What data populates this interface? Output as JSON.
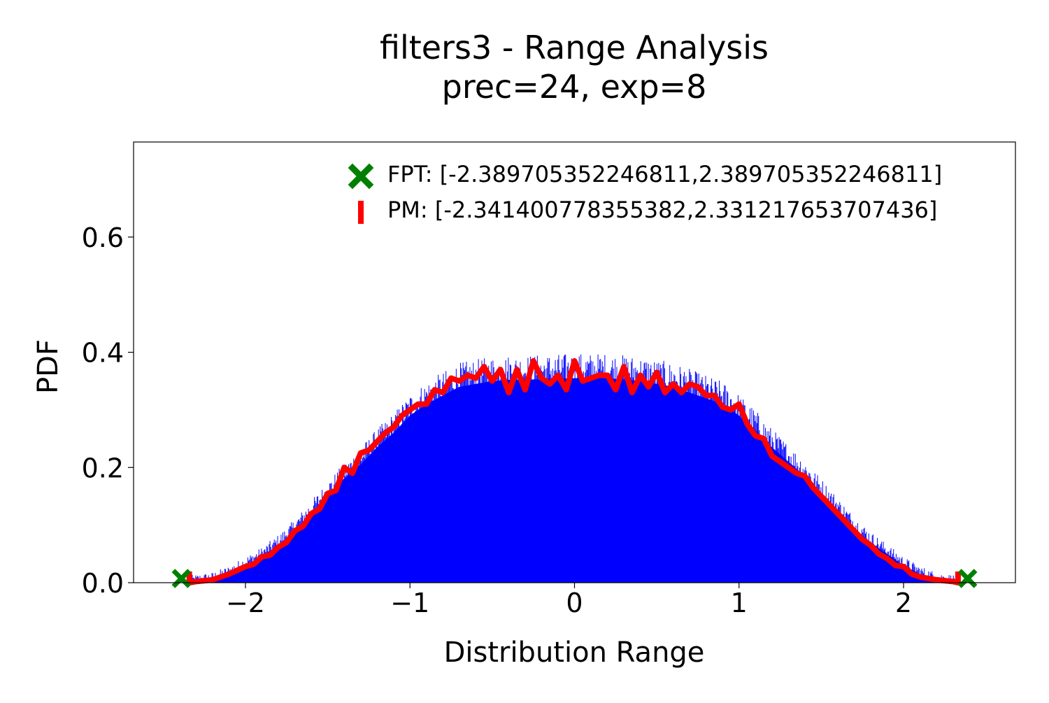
{
  "chart_data": {
    "type": "histogram",
    "title": "filters3 - Range Analysis",
    "subtitle": "prec=24, exp=8",
    "xlabel": "Distribution Range",
    "ylabel": "PDF",
    "xlim": [
      -2.68,
      2.68
    ],
    "ylim": [
      0.0,
      0.765
    ],
    "xticks": [
      {
        "value": -2,
        "label": "−2"
      },
      {
        "value": -1,
        "label": "−1"
      },
      {
        "value": 0,
        "label": "0"
      },
      {
        "value": 1,
        "label": "1"
      },
      {
        "value": 2,
        "label": "2"
      }
    ],
    "yticks": [
      {
        "value": 0.0,
        "label": "0.0"
      },
      {
        "value": 0.2,
        "label": "0.2"
      },
      {
        "value": 0.4,
        "label": "0.4"
      },
      {
        "value": 0.6,
        "label": "0.6"
      }
    ],
    "grid": false,
    "legend_position": "top-right",
    "colors": {
      "histogram": "#0000ff",
      "density": "#ff0000",
      "fpt_marker": "#008000",
      "pm_marker": "#ff0000"
    },
    "histogram": {
      "x_range": [
        -2.3414,
        2.3312
      ],
      "bins": 2000,
      "envelope": [
        [
          -2.34,
          0.0
        ],
        [
          -2.2,
          0.005
        ],
        [
          -2.1,
          0.015
        ],
        [
          -2.0,
          0.03
        ],
        [
          -1.9,
          0.045
        ],
        [
          -1.8,
          0.065
        ],
        [
          -1.7,
          0.09
        ],
        [
          -1.6,
          0.12
        ],
        [
          -1.5,
          0.15
        ],
        [
          -1.4,
          0.18
        ],
        [
          -1.3,
          0.205
        ],
        [
          -1.2,
          0.235
        ],
        [
          -1.1,
          0.26
        ],
        [
          -1.0,
          0.29
        ],
        [
          -0.9,
          0.31
        ],
        [
          -0.8,
          0.325
        ],
        [
          -0.7,
          0.34
        ],
        [
          -0.6,
          0.345
        ],
        [
          -0.5,
          0.35
        ],
        [
          -0.4,
          0.352
        ],
        [
          -0.2,
          0.353
        ],
        [
          0.0,
          0.355
        ],
        [
          0.2,
          0.355
        ],
        [
          0.4,
          0.35
        ],
        [
          0.5,
          0.345
        ],
        [
          0.6,
          0.34
        ],
        [
          0.7,
          0.33
        ],
        [
          0.8,
          0.32
        ],
        [
          0.9,
          0.31
        ],
        [
          1.0,
          0.29
        ],
        [
          1.1,
          0.265
        ],
        [
          1.2,
          0.235
        ],
        [
          1.3,
          0.21
        ],
        [
          1.4,
          0.185
        ],
        [
          1.5,
          0.155
        ],
        [
          1.6,
          0.125
        ],
        [
          1.7,
          0.095
        ],
        [
          1.8,
          0.07
        ],
        [
          1.9,
          0.05
        ],
        [
          2.0,
          0.03
        ],
        [
          2.1,
          0.015
        ],
        [
          2.2,
          0.005
        ],
        [
          2.331,
          0.0
        ]
      ],
      "peak_max": 0.42
    },
    "density_curve": {
      "name": "PM",
      "x": [
        -2.34,
        -2.3,
        -2.2,
        -2.1,
        -2.0,
        -1.95,
        -1.9,
        -1.85,
        -1.8,
        -1.75,
        -1.7,
        -1.65,
        -1.6,
        -1.55,
        -1.5,
        -1.45,
        -1.4,
        -1.35,
        -1.3,
        -1.25,
        -1.2,
        -1.15,
        -1.1,
        -1.05,
        -1.0,
        -0.95,
        -0.9,
        -0.85,
        -0.8,
        -0.75,
        -0.7,
        -0.65,
        -0.6,
        -0.55,
        -0.5,
        -0.45,
        -0.4,
        -0.35,
        -0.3,
        -0.25,
        -0.2,
        -0.15,
        -0.1,
        -0.05,
        0.0,
        0.05,
        0.1,
        0.15,
        0.2,
        0.25,
        0.3,
        0.35,
        0.4,
        0.45,
        0.5,
        0.55,
        0.6,
        0.65,
        0.7,
        0.75,
        0.8,
        0.85,
        0.9,
        0.95,
        1.0,
        1.05,
        1.1,
        1.15,
        1.2,
        1.25,
        1.3,
        1.35,
        1.4,
        1.45,
        1.5,
        1.55,
        1.6,
        1.65,
        1.7,
        1.75,
        1.8,
        1.85,
        1.9,
        1.95,
        2.0,
        2.05,
        2.1,
        2.2,
        2.3,
        2.331
      ],
      "y": [
        0.0,
        0.002,
        0.005,
        0.015,
        0.028,
        0.032,
        0.045,
        0.048,
        0.062,
        0.07,
        0.09,
        0.098,
        0.12,
        0.128,
        0.155,
        0.16,
        0.2,
        0.19,
        0.225,
        0.23,
        0.245,
        0.26,
        0.27,
        0.29,
        0.3,
        0.31,
        0.31,
        0.335,
        0.33,
        0.355,
        0.35,
        0.36,
        0.355,
        0.375,
        0.35,
        0.37,
        0.33,
        0.37,
        0.335,
        0.385,
        0.355,
        0.345,
        0.36,
        0.335,
        0.385,
        0.35,
        0.355,
        0.36,
        0.36,
        0.335,
        0.375,
        0.33,
        0.36,
        0.34,
        0.365,
        0.33,
        0.345,
        0.33,
        0.345,
        0.34,
        0.325,
        0.325,
        0.305,
        0.3,
        0.31,
        0.275,
        0.255,
        0.25,
        0.22,
        0.21,
        0.2,
        0.19,
        0.185,
        0.165,
        0.15,
        0.135,
        0.12,
        0.105,
        0.09,
        0.075,
        0.065,
        0.05,
        0.042,
        0.03,
        0.028,
        0.015,
        0.01,
        0.005,
        0.002,
        0.0
      ]
    },
    "legend": [
      {
        "marker": "x-cross",
        "label": "FPT: [-2.389705352246811,2.389705352246811]",
        "points_x": [
          -2.389705352246811,
          2.389705352246811
        ],
        "point_y": 0.0
      },
      {
        "marker": "vertical-bar",
        "label": "PM: [-2.341400778355382,2.331217653707436]",
        "points_x": [
          -2.341400778355382,
          2.331217653707436
        ],
        "point_y": 0.0
      }
    ]
  }
}
